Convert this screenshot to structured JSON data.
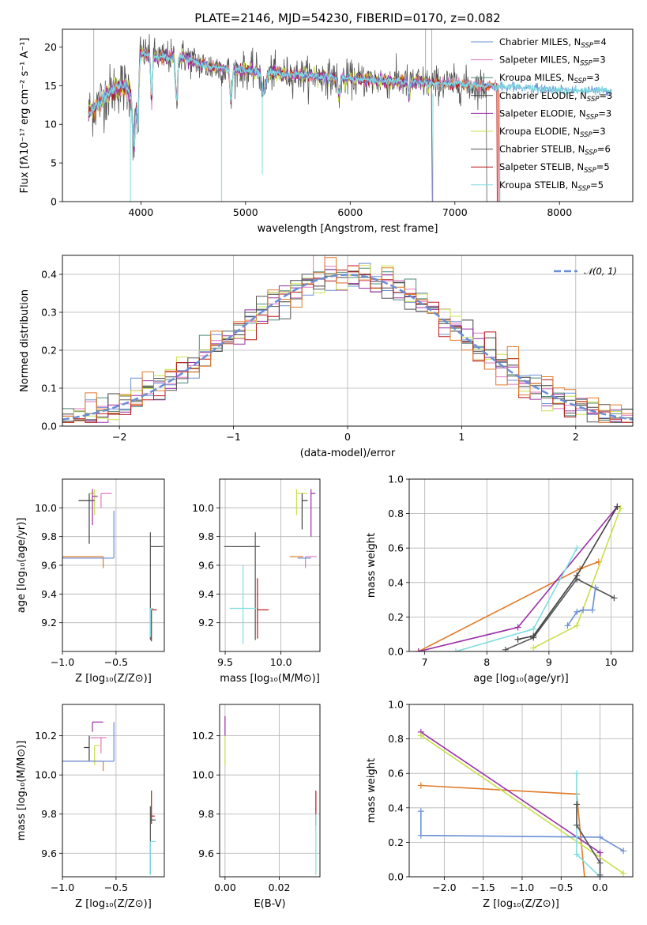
{
  "figure_title": "PLATE=2146, MJD=54230, FIBERID=0170, z=0.082",
  "colors": {
    "miles_chabrier": "#6a8fd6",
    "miles_salpeter": "#e377c2",
    "miles_kroupa": "#4c8a7a",
    "elodie_chabrier": "#404040",
    "elodie_salpeter": "#9a2fa8",
    "elodie_kroupa": "#c8e04a",
    "stelib_chabrier": "#555555",
    "stelib_salpeter": "#b81818",
    "stelib_kroupa": "#80dce0",
    "orange": "#e07b2a",
    "gauss": "#6a8fd6"
  },
  "chart_data": [
    {
      "type": "line",
      "title": "PLATE=2146, MJD=54230, FIBERID=0170, z=0.082",
      "xlabel": "wavelength [Angstrom, rest frame]",
      "ylabel": "Flux [fλ10⁻¹⁷ erg cm⁻² s⁻¹ A⁻¹]",
      "xlim": [
        3250,
        8700
      ],
      "ylim": [
        0,
        22.3
      ],
      "xticks": [
        4000,
        5000,
        6000,
        7000,
        8000
      ],
      "yticks": [
        0,
        5,
        10,
        15,
        20
      ],
      "legend_position": "top-right",
      "legend": [
        {
          "label": "Chabrier MILES, N",
          "sub": "SSP",
          "tail": "=4",
          "color_key": "miles_chabrier"
        },
        {
          "label": "Salpeter MILES, N",
          "sub": "SSP",
          "tail": "=3",
          "color_key": "miles_salpeter"
        },
        {
          "label": "Kroupa MILES, N",
          "sub": "SSP",
          "tail": "=3",
          "color_key": "miles_kroupa"
        },
        {
          "label": "Chabrier ELODIE, N",
          "sub": "SSP",
          "tail": "=3",
          "color_key": "elodie_chabrier"
        },
        {
          "label": "Salpeter ELODIE, N",
          "sub": "SSP",
          "tail": "=3",
          "color_key": "elodie_salpeter"
        },
        {
          "label": "Kroupa ELODIE, N",
          "sub": "SSP",
          "tail": "=3",
          "color_key": "elodie_kroupa"
        },
        {
          "label": "Chabrier STELIB, N",
          "sub": "SSP",
          "tail": "=6",
          "color_key": "stelib_chabrier"
        },
        {
          "label": "Salpeter STELIB, N",
          "sub": "SSP",
          "tail": "=5",
          "color_key": "stelib_salpeter"
        },
        {
          "label": "Kroupa STELIB, N",
          "sub": "SSP",
          "tail": "=5",
          "color_key": "stelib_kroupa"
        }
      ],
      "spectrum_envelope": {
        "x": [
          3500,
          3600,
          3700,
          3800,
          3900,
          4000,
          4100,
          4200,
          4400,
          4600,
          4800,
          5000,
          5200,
          5400,
          5600,
          5800,
          6000,
          6200,
          6400,
          6600,
          6800,
          7000,
          7200,
          7400,
          7600,
          7800,
          8000,
          8200,
          8400
        ],
        "y": [
          11.5,
          12.8,
          14.2,
          15.0,
          14.5,
          19.2,
          19.0,
          18.6,
          18.8,
          17.6,
          17.2,
          17.0,
          16.7,
          16.5,
          16.3,
          16.1,
          15.9,
          15.7,
          15.6,
          15.5,
          15.3,
          15.2,
          15.0,
          14.9,
          14.8,
          14.6,
          14.5,
          14.4,
          14.3
        ]
      }
    },
    {
      "type": "line",
      "xlabel": "(data-model)/error",
      "ylabel": "Normed distribution",
      "xlim": [
        -2.5,
        2.5
      ],
      "ylim": [
        0,
        0.45
      ],
      "xticks": [
        -2,
        -1,
        0,
        1,
        2
      ],
      "yticks": [
        0.0,
        0.1,
        0.2,
        0.3,
        0.4
      ],
      "legend": [
        {
          "label": "𝒩(0, 1)",
          "color_key": "gauss",
          "style": "dashed"
        }
      ],
      "gaussian": {
        "mean": 0,
        "sigma": 1
      }
    },
    {
      "type": "scatter",
      "xlabel": "Z [log₁₀(Z/Z⊙)]",
      "ylabel": "age  [log₁₀(age/yr)]",
      "xlim": [
        -1.0,
        -0.05
      ],
      "ylim": [
        9.0,
        10.2
      ],
      "xticks": [
        -1.0,
        -0.5
      ],
      "yticks": [
        9.2,
        9.4,
        9.6,
        9.8,
        10.0
      ],
      "points": [
        {
          "x": -0.64,
          "y": 10.1,
          "color_key": "miles_salpeter"
        },
        {
          "x": -0.7,
          "y": 10.1,
          "color_key": "elodie_kroupa"
        },
        {
          "x": -0.75,
          "y": 10.05,
          "color_key": "elodie_chabrier"
        },
        {
          "x": -0.72,
          "y": 10.08,
          "color_key": "elodie_salpeter"
        },
        {
          "x": -0.62,
          "y": 9.66,
          "color_key": "orange"
        },
        {
          "x": -0.52,
          "y": 9.65,
          "color_key": "miles_chabrier"
        },
        {
          "x": -0.18,
          "y": 9.73,
          "color_key": "stelib_chabrier"
        },
        {
          "x": -0.18,
          "y": 9.3,
          "color_key": "stelib_kroupa"
        },
        {
          "x": -0.17,
          "y": 9.29,
          "color_key": "stelib_salpeter"
        }
      ]
    },
    {
      "type": "scatter",
      "xlabel": "mass [log₁₀(M/M⊙)]",
      "ylabel": "",
      "xlim": [
        9.45,
        10.35
      ],
      "ylim": [
        9.0,
        10.2
      ],
      "xticks": [
        9.5,
        10.0
      ],
      "yticks": [
        9.2,
        9.4,
        9.6,
        9.8,
        10.0
      ],
      "points": [
        {
          "x": 10.14,
          "y": 10.1,
          "color_key": "elodie_kroupa"
        },
        {
          "x": 10.19,
          "y": 10.05,
          "color_key": "elodie_chabrier"
        },
        {
          "x": 10.27,
          "y": 10.1,
          "color_key": "elodie_salpeter"
        },
        {
          "x": 10.22,
          "y": 9.66,
          "color_key": "miles_salpeter"
        },
        {
          "x": 10.08,
          "y": 9.66,
          "color_key": "orange"
        },
        {
          "x": 10.15,
          "y": 9.65,
          "color_key": "miles_chabrier"
        },
        {
          "x": 9.77,
          "y": 9.73,
          "color_key": "stelib_chabrier"
        },
        {
          "x": 9.66,
          "y": 9.3,
          "color_key": "stelib_kroupa"
        },
        {
          "x": 9.79,
          "y": 9.29,
          "color_key": "stelib_salpeter"
        }
      ]
    },
    {
      "type": "line",
      "xlabel": "age  [log₁₀(age/yr)]",
      "ylabel": "mass weight",
      "xlim": [
        6.75,
        10.35
      ],
      "ylim": [
        0,
        1.0
      ],
      "xticks": [
        7,
        8,
        9,
        10
      ],
      "yticks": [
        0.0,
        0.2,
        0.4,
        0.6,
        0.8,
        1.0
      ],
      "series": [
        {
          "color_key": "orange",
          "x": [
            6.9,
            9.5,
            9.8
          ],
          "y": [
            0.0,
            0.48,
            0.52
          ]
        },
        {
          "color_key": "elodie_salpeter",
          "x": [
            6.9,
            8.5,
            10.1
          ],
          "y": [
            0.0,
            0.14,
            0.84
          ]
        },
        {
          "color_key": "elodie_kroupa",
          "x": [
            8.75,
            9.45,
            10.15
          ],
          "y": [
            0.02,
            0.15,
            0.83
          ]
        },
        {
          "color_key": "stelib_chabrier",
          "x": [
            8.3,
            8.75,
            9.45,
            10.05
          ],
          "y": [
            0.01,
            0.08,
            0.42,
            0.31
          ]
        },
        {
          "color_key": "miles_chabrier",
          "x": [
            9.3,
            9.45,
            9.55,
            9.7,
            9.75
          ],
          "y": [
            0.15,
            0.23,
            0.24,
            0.24,
            0.37
          ]
        },
        {
          "color_key": "stelib_kroupa",
          "x": [
            7.5,
            8.75,
            9.45
          ],
          "y": [
            0.0,
            0.13,
            0.6
          ]
        },
        {
          "color_key": "elodie_chabrier",
          "x": [
            8.5,
            8.75,
            9.45,
            10.1
          ],
          "y": [
            0.07,
            0.09,
            0.44,
            0.84
          ]
        }
      ]
    },
    {
      "type": "scatter",
      "xlabel": "Z [log₁₀(Z/Z⊙)]",
      "ylabel": "mass [log₁₀(M/M⊙)]",
      "xlim": [
        -1.0,
        -0.05
      ],
      "ylim": [
        9.48,
        10.36
      ],
      "xticks": [
        -1.0,
        -0.5
      ],
      "yticks": [
        9.6,
        9.8,
        10.0,
        10.2
      ],
      "points": [
        {
          "x": -0.72,
          "y": 10.27,
          "color_key": "elodie_salpeter"
        },
        {
          "x": -0.64,
          "y": 10.19,
          "color_key": "miles_salpeter"
        },
        {
          "x": -0.75,
          "y": 10.14,
          "color_key": "elodie_chabrier"
        },
        {
          "x": -0.7,
          "y": 10.15,
          "color_key": "elodie_kroupa"
        },
        {
          "x": -0.62,
          "y": 10.07,
          "color_key": "orange"
        },
        {
          "x": -0.52,
          "y": 10.07,
          "color_key": "miles_chabrier"
        },
        {
          "x": -0.17,
          "y": 9.79,
          "color_key": "stelib_salpeter"
        },
        {
          "x": -0.18,
          "y": 9.77,
          "color_key": "stelib_chabrier"
        },
        {
          "x": -0.18,
          "y": 9.66,
          "color_key": "stelib_kroupa"
        }
      ]
    },
    {
      "type": "scatter",
      "xlabel": "E(B-V)",
      "ylabel": "",
      "xlim": [
        -0.002,
        0.035
      ],
      "ylim": [
        9.48,
        10.36
      ],
      "xticks": [
        0.0,
        0.02
      ],
      "yticks": [
        9.6,
        9.8,
        10.0,
        10.2
      ],
      "points": [
        {
          "x": 0.0,
          "y": 10.25,
          "color_key": "elodie_salpeter"
        },
        {
          "x": 0.0,
          "y": 10.1,
          "color_key": "elodie_kroupa"
        },
        {
          "x": 0.0335,
          "y": 9.78,
          "color_key": "stelib_salpeter"
        },
        {
          "x": 0.0335,
          "y": 9.65,
          "color_key": "stelib_kroupa"
        }
      ]
    },
    {
      "type": "line",
      "xlabel": "Z [log₁₀(Z/Z⊙)]",
      "ylabel": "mass weight",
      "xlim": [
        -2.45,
        0.42
      ],
      "ylim": [
        0,
        1.0
      ],
      "xticks": [
        -2.0,
        -1.5,
        -1.0,
        -0.5,
        0.0
      ],
      "yticks": [
        0.0,
        0.2,
        0.4,
        0.6,
        0.8,
        1.0
      ],
      "series": [
        {
          "color_key": "orange",
          "x": [
            -2.3,
            -0.3,
            -0.2
          ],
          "y": [
            0.53,
            0.48,
            0.0
          ]
        },
        {
          "color_key": "elodie_salpeter",
          "x": [
            -2.3,
            0.0,
            0.0
          ],
          "y": [
            0.84,
            0.14,
            0.0
          ]
        },
        {
          "color_key": "elodie_kroupa",
          "x": [
            -2.3,
            0.3
          ],
          "y": [
            0.82,
            0.02
          ]
        },
        {
          "color_key": "miles_chabrier",
          "x": [
            -2.3,
            -2.3,
            0.0,
            0.3
          ],
          "y": [
            0.38,
            0.24,
            0.23,
            0.15
          ]
        },
        {
          "color_key": "stelib_kroupa",
          "x": [
            -0.3,
            -0.3,
            0.0
          ],
          "y": [
            0.6,
            0.13,
            0.0
          ]
        },
        {
          "color_key": "stelib_chabrier",
          "x": [
            -0.3,
            -0.3,
            0.0,
            0.0
          ],
          "y": [
            0.42,
            0.3,
            0.08,
            0.01
          ]
        }
      ]
    }
  ]
}
